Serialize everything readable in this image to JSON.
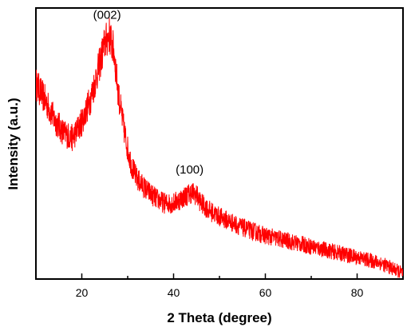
{
  "chart_data": {
    "type": "line",
    "xlabel": "2 Theta (degree)",
    "ylabel": "Intensity (a.u.)",
    "xlim": [
      10,
      90
    ],
    "ylim": [
      0,
      1
    ],
    "x_ticks": [
      20,
      40,
      60,
      80
    ],
    "y_tick_labels_shown": false,
    "grid": false,
    "series_color": "#ff0000",
    "series": [
      {
        "x": [
          10,
          12,
          14,
          16,
          18,
          20,
          22,
          24,
          25,
          26,
          27,
          28,
          29,
          30,
          31,
          32,
          34,
          36,
          38,
          40,
          42,
          44,
          45,
          46,
          48,
          50,
          55,
          60,
          65,
          70,
          75,
          80,
          85,
          90
        ],
        "values": [
          0.72,
          0.66,
          0.59,
          0.54,
          0.52,
          0.58,
          0.67,
          0.8,
          0.87,
          0.9,
          0.84,
          0.68,
          0.57,
          0.48,
          0.41,
          0.37,
          0.33,
          0.3,
          0.28,
          0.28,
          0.3,
          0.32,
          0.31,
          0.28,
          0.25,
          0.23,
          0.19,
          0.16,
          0.14,
          0.12,
          0.1,
          0.08,
          0.06,
          0.02
        ]
      }
    ],
    "annotations": [
      {
        "text": "(002)",
        "x": 25.5,
        "y": 0.96
      },
      {
        "text": "(100)",
        "x": 43.5,
        "y": 0.39
      }
    ]
  }
}
